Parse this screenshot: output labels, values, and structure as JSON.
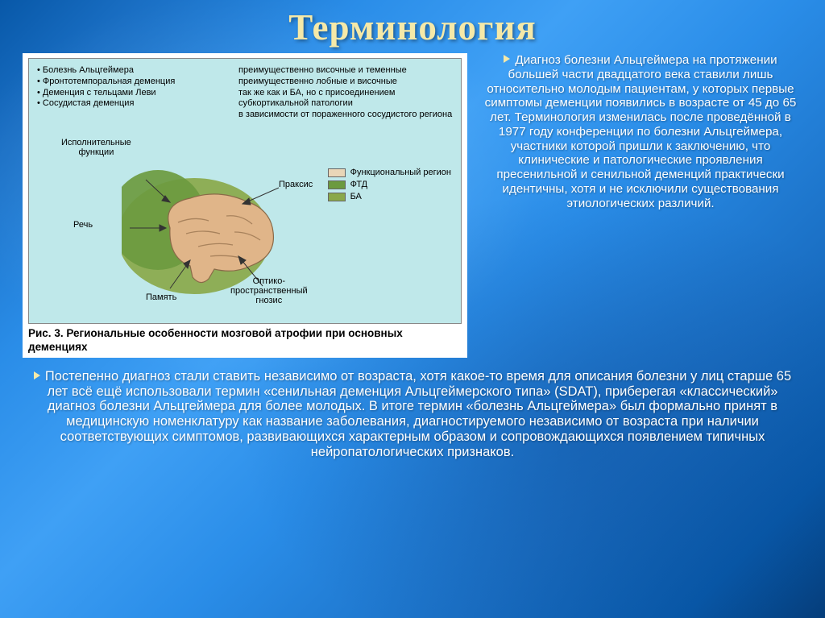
{
  "title": "Терминология",
  "diagram": {
    "left_list": [
      "• Болезнь Альцгеймера",
      "• Фронтотемпоральная деменция",
      "• Деменция с тельцами Леви",
      "• Сосудистая деменция"
    ],
    "right_list": [
      "преимущественно височные и теменные",
      "преимущественно лобные и височные",
      "так же как и БА, но с присоединением",
      "субкортикальной патологии",
      "в зависимости от пораженного сосудистого региона"
    ],
    "brain_functions": {
      "exec": "Исполнительные\nфункции",
      "speech": "Речь",
      "memory": "Память",
      "praxis": "Праксис",
      "optic": "Оптико-\nпространственный\nгнозис"
    },
    "legend": [
      {
        "label": "Функциональный регион",
        "color": "#e9d6b8"
      },
      {
        "label": "ФТД",
        "color": "#6c9a3f"
      },
      {
        "label": "БА",
        "color": "#8aa84a"
      }
    ],
    "caption": "Рис. 3. Региональные особенности мозговой атрофии при основных деменциях",
    "bg_color": "#bfe8ea",
    "brain_colors": {
      "ftd_blob": "#6c9a3f",
      "ba_blob": "#8aa84a",
      "brain_fill": "#d9a978",
      "brain_stroke": "#7a5a3a"
    }
  },
  "right_paragraph": "Диагноз болезни Альцгеймера на протяжении большей части двадцатого века ставили лишь относительно молодым пациентам, у которых первые симптомы деменции появились в возрасте от 45 до 65 лет. Терминология изменилась после проведённой в 1977 году конференции по болезни Альцгеймера, участники которой пришли к заключению, что клинические и патологические проявления пресенильной и сенильной деменций практически идентичны, хотя и не исключили существования этиологических различий.",
  "bottom_paragraph": "Постепенно диагноз стали ставить независимо от возраста, хотя какое-то время для описания болезни у лиц старше 65 лет всё ещё использовали термин «сенильная деменция Альцгеймерского типа» (SDAT), приберегая «классический» диагноз болезни Альцгеймера для более молодых. В итоге термин «болезнь Альцгеймера» был формально принят в медицинскую номенклатуру как название заболевания, диагностируемого независимо от возраста при наличии соответствующих симптомов, развивающихся характерным образом и сопровождающихся появлением типичных нейропатологических признаков.",
  "colors": {
    "title_color": "#f5e9a8",
    "text_color": "#ffffff",
    "bullet_color": "#f5e9a8"
  }
}
